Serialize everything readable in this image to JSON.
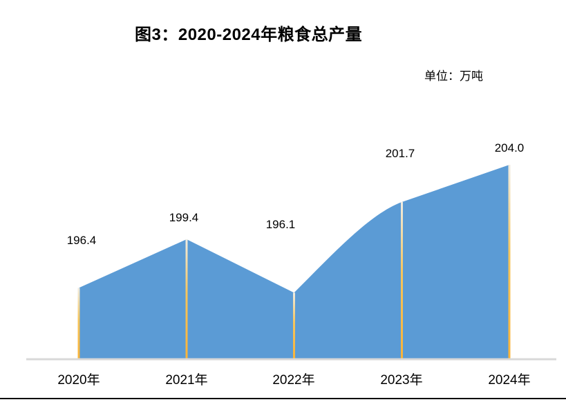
{
  "header": {
    "title": "图3：2020-2024年粮食总产量",
    "unit_label": "单位：万吨"
  },
  "chart_data": {
    "type": "area",
    "title": "图3：2020-2024年粮食总产量",
    "unit": "万吨",
    "categories": [
      "2020年",
      "2021年",
      "2022年",
      "2023年",
      "2024年"
    ],
    "series": [
      {
        "name": "粮食总产量",
        "values": [
          196.4,
          199.4,
          196.1,
          201.7,
          204.0
        ]
      }
    ],
    "point_labels": [
      "196.4",
      "199.4",
      "196.1",
      "201.7",
      "204.0"
    ],
    "xlabel": "",
    "ylabel": "",
    "ylim": [
      192,
      206
    ],
    "grid": false,
    "legend": "none",
    "y_axis_visible": false,
    "colors": {
      "area_fill": "#5B9BD5",
      "drop_line_top": "#EFECE2",
      "drop_line_mid": "#F6C55C",
      "drop_line_bottom": "#F9B339",
      "axis_line": "#D8D8D8",
      "label_text": "#000000",
      "page_border": "#000000"
    }
  }
}
